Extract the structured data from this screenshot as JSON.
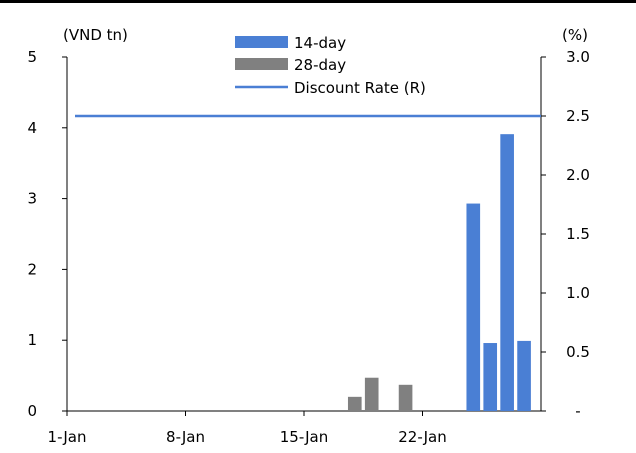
{
  "chart_data": {
    "type": "bar",
    "left_axis_label": "(VND tn)",
    "right_axis_label": "(%)",
    "x_tick_labels": [
      "1-Jan",
      "8-Jan",
      "15-Jan",
      "22-Jan"
    ],
    "x_tick_days": [
      1,
      8,
      15,
      22
    ],
    "x_range_days": [
      1,
      29
    ],
    "y_left_ticks": [
      "0",
      "1",
      "2",
      "3",
      "4",
      "5"
    ],
    "y_left_range": [
      0,
      5
    ],
    "y_right_ticks": [
      "-",
      "0.5",
      "1.0",
      "1.5",
      "2.0",
      "2.5",
      "3.0"
    ],
    "y_right_range": [
      0,
      3.0
    ],
    "series": [
      {
        "name": "14-day",
        "kind": "bar",
        "axis": "left",
        "color": "#4a7fd4",
        "points": [
          {
            "day": 25,
            "value": 2.93
          },
          {
            "day": 26,
            "value": 0.96
          },
          {
            "day": 27,
            "value": 3.91
          },
          {
            "day": 28,
            "value": 0.99
          }
        ]
      },
      {
        "name": "28-day",
        "kind": "bar",
        "axis": "left",
        "color": "#808080",
        "points": [
          {
            "day": 18,
            "value": 0.2
          },
          {
            "day": 19,
            "value": 0.47
          },
          {
            "day": 21,
            "value": 0.37
          }
        ]
      },
      {
        "name": "Discount Rate (R)",
        "kind": "line",
        "axis": "right",
        "color": "#4a7fd4",
        "value": 2.5
      }
    ],
    "legend_position": "top-center"
  }
}
